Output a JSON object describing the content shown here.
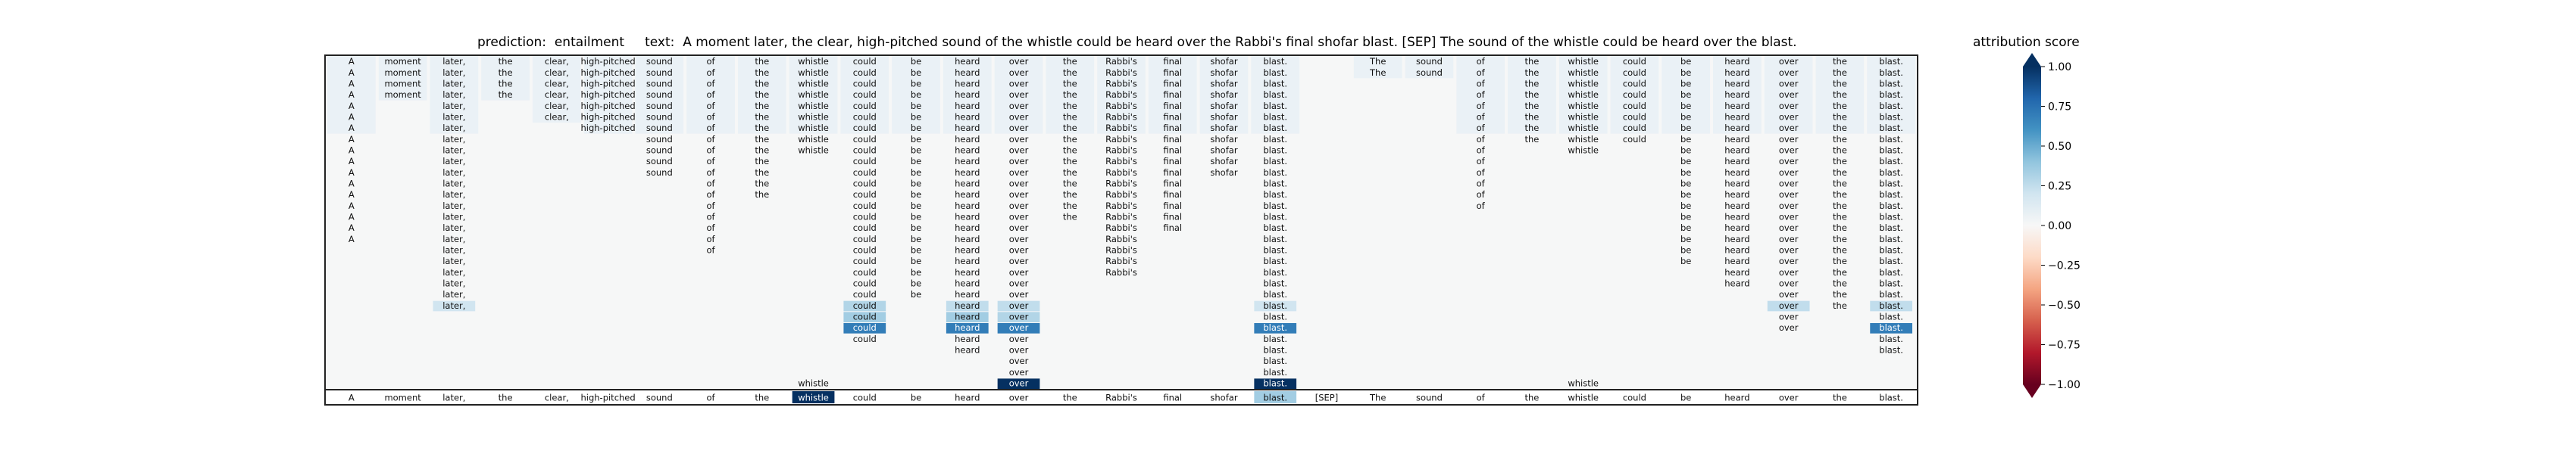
{
  "header": {
    "prediction_label": "prediction:",
    "prediction_value": "entailment",
    "text_label": "text:",
    "text_value": "A moment later, the clear, high-pitched sound of the whistle could be heard over the Rabbi's final shofar blast. [SEP] The sound of the whistle could be heard over the blast."
  },
  "colorbar": {
    "title": "attribution score",
    "ticks": [
      "1.00",
      "0.75",
      "0.50",
      "0.25",
      "0.00",
      "−0.25",
      "−0.50",
      "−0.75",
      "−1.00"
    ],
    "tick_values": [
      1.0,
      0.75,
      0.5,
      0.25,
      0.0,
      -0.25,
      -0.5,
      -0.75,
      -1.0
    ],
    "colors": [
      "#67001f",
      "#b2182b",
      "#d6604d",
      "#f4a582",
      "#fddbc7",
      "#f7f7f7",
      "#d1e5f0",
      "#92c5de",
      "#4393c3",
      "#2166ac",
      "#053061"
    ]
  },
  "chart_data": {
    "type": "heatmap",
    "title": "prediction:  entailment     text:  A moment later, the clear, high-pitched sound of the whistle could be heard over the Rabbi's final shofar blast. [SEP] The sound of the whistle could be heard over the blast.",
    "tokens": [
      "A",
      "moment",
      "later,",
      "the",
      "clear,",
      "high-pitched",
      "sound",
      "of",
      "the",
      "whistle",
      "could",
      "be",
      "heard",
      "over",
      "the",
      "Rabbi's",
      "final",
      "shofar",
      "blast.",
      "[SEP]",
      "The",
      "sound",
      "of",
      "the",
      "whistle",
      "could",
      "be",
      "heard",
      "over",
      "the",
      "blast."
    ],
    "rows": 30,
    "column_first_row": [
      0,
      0,
      0,
      0,
      0,
      0,
      0,
      0,
      0,
      0,
      0,
      0,
      0,
      0,
      0,
      0,
      0,
      0,
      0,
      null,
      0,
      0,
      0,
      0,
      0,
      0,
      0,
      0,
      0,
      0,
      0
    ],
    "column_last_row": [
      16,
      3,
      22,
      3,
      5,
      6,
      10,
      17,
      12,
      8,
      25,
      21,
      26,
      29,
      14,
      19,
      15,
      10,
      29,
      null,
      1,
      1,
      13,
      7,
      8,
      7,
      18,
      20,
      24,
      22,
      26
    ],
    "extra_cells": [
      {
        "row": 29,
        "col": 9,
        "token": "whistle"
      },
      {
        "row": 29,
        "col": 24,
        "token": "whistle"
      }
    ],
    "highlights": [
      {
        "row": 22,
        "col": 2,
        "value": 0.2
      },
      {
        "row": 22,
        "col": 10,
        "value": 0.3
      },
      {
        "row": 23,
        "col": 10,
        "value": 0.35
      },
      {
        "row": 24,
        "col": 10,
        "value": 0.7
      },
      {
        "row": 22,
        "col": 12,
        "value": 0.25
      },
      {
        "row": 23,
        "col": 12,
        "value": 0.35
      },
      {
        "row": 24,
        "col": 12,
        "value": 0.7
      },
      {
        "row": 22,
        "col": 13,
        "value": 0.25
      },
      {
        "row": 23,
        "col": 13,
        "value": 0.3
      },
      {
        "row": 24,
        "col": 13,
        "value": 0.7
      },
      {
        "row": 29,
        "col": 13,
        "value": 1.0
      },
      {
        "row": 22,
        "col": 18,
        "value": 0.2
      },
      {
        "row": 24,
        "col": 18,
        "value": 0.7
      },
      {
        "row": 29,
        "col": 18,
        "value": 1.0
      },
      {
        "row": 22,
        "col": 28,
        "value": 0.25
      },
      {
        "row": 22,
        "col": 30,
        "value": 0.25
      },
      {
        "row": 24,
        "col": 30,
        "value": 0.7
      }
    ],
    "bottom_strip_values": [
      0.02,
      0,
      0.03,
      0,
      0.02,
      0.03,
      0.02,
      0,
      0,
      1.0,
      0.02,
      0,
      0.03,
      0,
      0,
      0.02,
      0,
      0,
      0.35,
      0,
      0,
      0,
      0,
      0,
      0,
      0,
      0,
      0,
      0,
      0,
      0
    ],
    "color_range": [
      -1.0,
      1.0
    ],
    "colormap": "RdBu",
    "grid": false
  }
}
